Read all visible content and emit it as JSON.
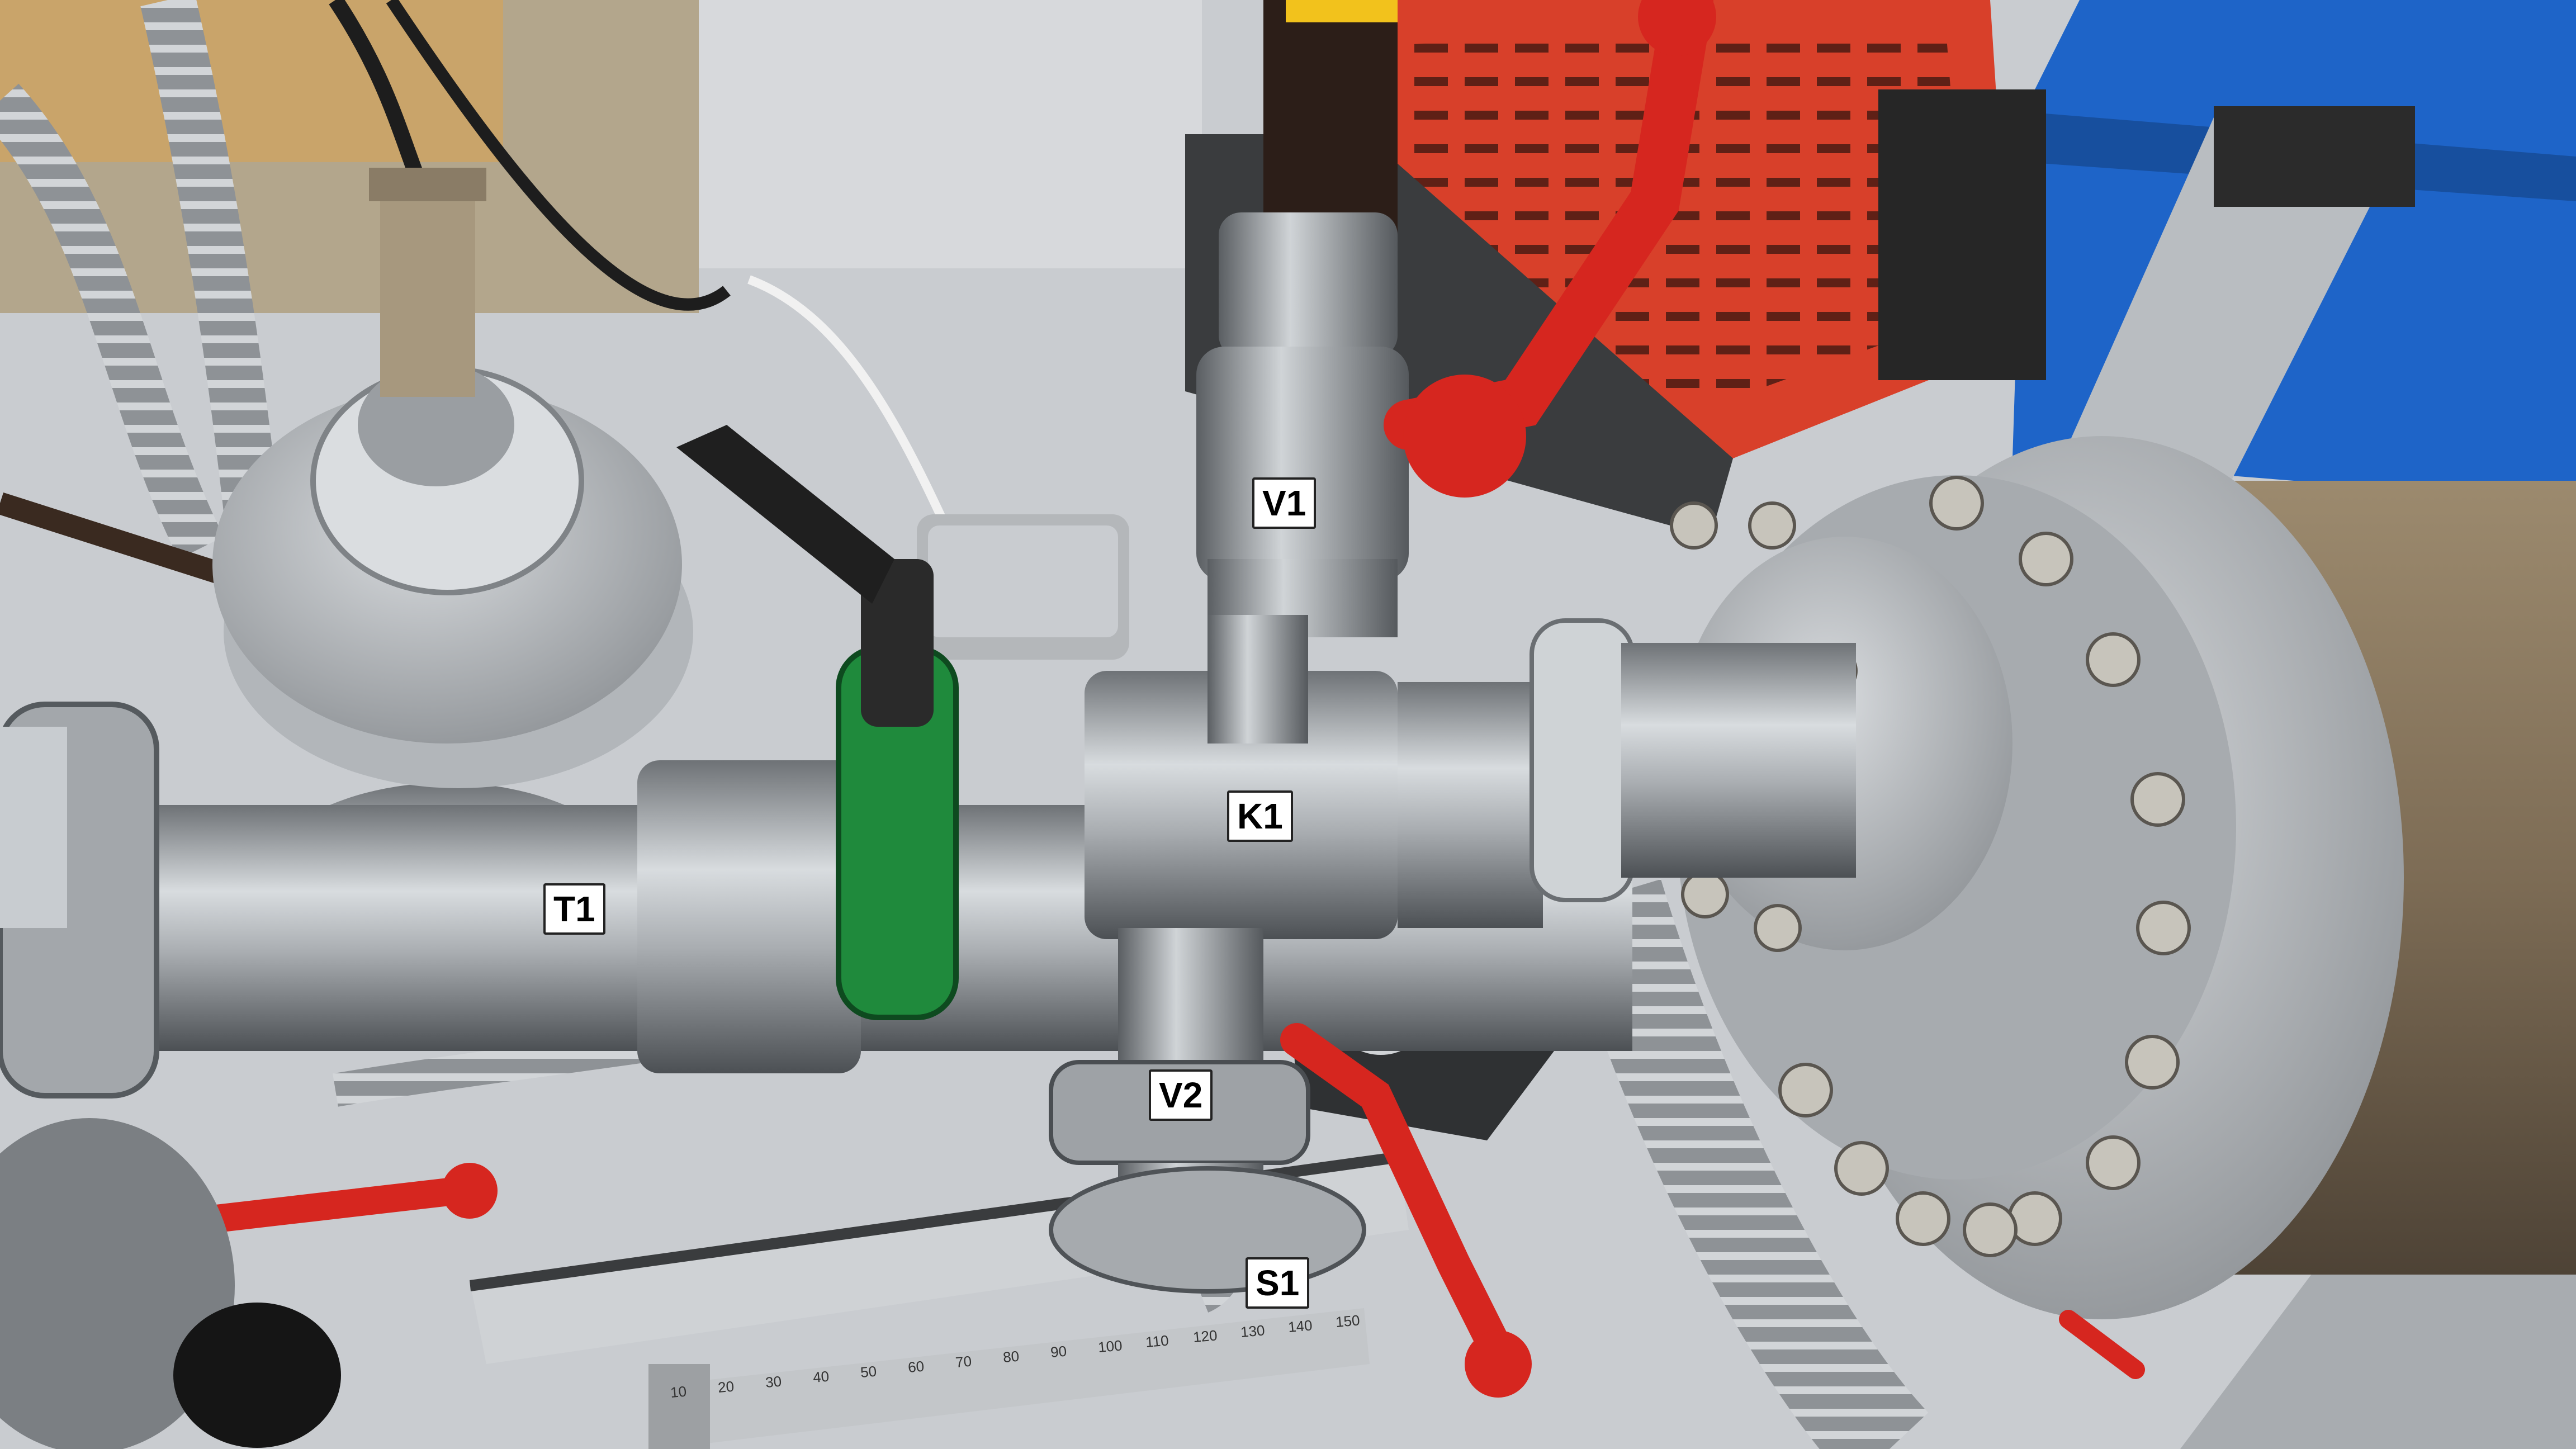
{
  "labels": {
    "v1": "V1",
    "k1": "K1",
    "t1": "T1",
    "v2": "V2",
    "s1": "S1"
  },
  "ruler": {
    "markings": "10 20 30 40 50 60 70 80 90 100 110 120 130 140 150"
  },
  "colors": {
    "table": "#c9ccd0",
    "steel": "#b8bcc0",
    "red_handle": "#d6261f",
    "green_clamp": "#1f8a3c",
    "blue_bin": "#1e64c8",
    "orange_pump": "#d8402a",
    "chamber": "#7a6a55"
  }
}
